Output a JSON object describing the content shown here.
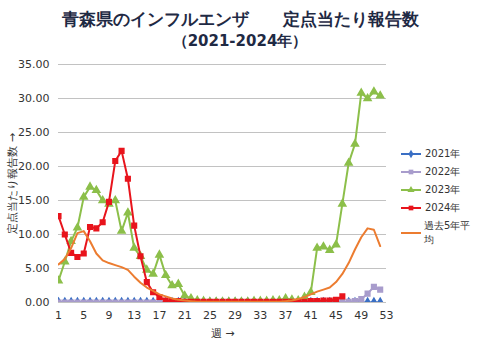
{
  "chart_data": {
    "type": "line",
    "title": "青森県のインフルエンザ　　定点当たり報告数",
    "subtitle": "（2021-2024年）",
    "x_label": "週",
    "y_label": "定点当たり報告数",
    "x": [
      1,
      2,
      3,
      4,
      5,
      6,
      7,
      8,
      9,
      10,
      11,
      12,
      13,
      14,
      15,
      16,
      17,
      18,
      19,
      20,
      21,
      22,
      23,
      24,
      25,
      26,
      27,
      28,
      29,
      30,
      31,
      32,
      33,
      34,
      35,
      36,
      37,
      38,
      39,
      40,
      41,
      42,
      43,
      44,
      45,
      46,
      47,
      48,
      49,
      50,
      51,
      52,
      53
    ],
    "xlim": [
      1,
      53
    ],
    "xticks": [
      1,
      5,
      9,
      13,
      17,
      21,
      25,
      29,
      33,
      37,
      41,
      45,
      49,
      53
    ],
    "ylim": [
      0,
      35
    ],
    "yticks": [
      {
        "value": 0,
        "label": "0.00"
      },
      {
        "value": 5,
        "label": "5.00"
      },
      {
        "value": 10,
        "label": "10.00"
      },
      {
        "value": 15,
        "label": "15.00"
      },
      {
        "value": 20,
        "label": "20.00"
      },
      {
        "value": 25,
        "label": "25.00"
      },
      {
        "value": 30,
        "label": "30.00"
      },
      {
        "value": 35,
        "label": "35.00"
      }
    ],
    "grid": true,
    "legend": "right",
    "series": [
      {
        "name": "2021年",
        "color": "#3a6fc4",
        "marker": "diamond",
        "values": [
          0,
          0,
          0,
          0,
          0,
          0,
          0,
          0,
          0,
          0,
          0,
          0,
          0,
          0,
          0,
          0,
          0,
          0,
          0,
          0,
          0,
          0,
          0,
          0,
          0,
          0,
          0,
          0,
          0,
          0,
          0,
          0,
          0,
          0,
          0,
          0,
          0,
          0,
          0,
          0,
          0,
          0,
          0,
          0,
          0,
          0,
          0,
          0,
          0,
          0,
          0,
          0,
          null
        ]
      },
      {
        "name": "2022年",
        "color": "#a89ccc",
        "marker": "square",
        "values": [
          0,
          0,
          0,
          0,
          0,
          0,
          0,
          0,
          0,
          0,
          0,
          0,
          0,
          0,
          0,
          0,
          0,
          0,
          0,
          0,
          0,
          0,
          0,
          0,
          0,
          0,
          0,
          0,
          0,
          0,
          0,
          0,
          0,
          0,
          0,
          0,
          0,
          0,
          0,
          0,
          0,
          0,
          0,
          0,
          0,
          0.05,
          0.1,
          0.2,
          0.5,
          1.3,
          2.3,
          1.9,
          null
        ]
      },
      {
        "name": "2023年",
        "color": "#8cbf4a",
        "marker": "triangle",
        "values": [
          3.2,
          6.0,
          9.0,
          11.0,
          15.5,
          17.0,
          16.5,
          15.0,
          14.5,
          15.0,
          10.5,
          13.2,
          8.0,
          6.8,
          4.8,
          4.2,
          7.0,
          4.0,
          2.5,
          2.7,
          1.0,
          0.6,
          0.3,
          0.2,
          0.1,
          0.1,
          0.1,
          0.1,
          0.1,
          0.1,
          0.1,
          0.2,
          0.2,
          0.2,
          0.3,
          0.3,
          0.6,
          0.4,
          0.3,
          0.8,
          1.5,
          8.0,
          8.2,
          7.7,
          8.5,
          14.5,
          20.5,
          23.3,
          30.8,
          30.0,
          31.0,
          30.4,
          null
        ]
      },
      {
        "name": "2024年",
        "color": "#e8141c",
        "marker": "square",
        "values": [
          12.7,
          10.0,
          7.3,
          6.7,
          7.2,
          11.1,
          10.9,
          11.8,
          14.8,
          20.8,
          22.3,
          18.2,
          11.3,
          6.8,
          3.0,
          1.5,
          0.8,
          0.3,
          0.2,
          0.2,
          0.1,
          0.1,
          0.1,
          0.1,
          0.1,
          0.1,
          0.1,
          0.1,
          0.1,
          0.1,
          0.1,
          0.1,
          0.1,
          0.1,
          0.1,
          0.1,
          0.1,
          0.1,
          0.1,
          0.1,
          0.2,
          0.2,
          0.3,
          0.3,
          0.4,
          0.9,
          null,
          null,
          null,
          null,
          null,
          null,
          null
        ]
      },
      {
        "name": "過去5年平均",
        "color": "#ec7c30",
        "marker": "none",
        "values": [
          5.6,
          6.4,
          8.0,
          10.2,
          10.5,
          9.0,
          7.2,
          6.2,
          5.8,
          5.5,
          5.2,
          4.8,
          3.8,
          2.9,
          2.2,
          1.7,
          1.2,
          0.9,
          0.6,
          0.4,
          0.3,
          0.2,
          0.1,
          0.1,
          0.1,
          0.1,
          0.1,
          0.1,
          0.1,
          0.1,
          0.1,
          0.1,
          0.1,
          0.1,
          0.1,
          0.1,
          0.2,
          0.3,
          0.5,
          0.8,
          1.2,
          1.6,
          1.9,
          2.2,
          3.0,
          4.2,
          5.8,
          7.8,
          9.6,
          10.9,
          10.7,
          8.3,
          null
        ]
      }
    ]
  }
}
